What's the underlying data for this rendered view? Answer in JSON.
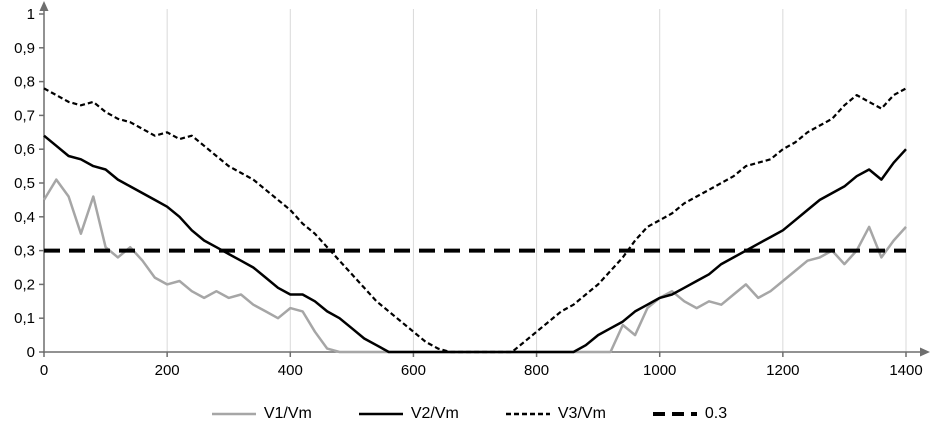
{
  "chart_data": {
    "type": "line",
    "title": "",
    "xlabel": "",
    "ylabel": "",
    "xlim": [
      0,
      1400
    ],
    "ylim": [
      0,
      1
    ],
    "grid": "vertical",
    "legend_position": "bottom",
    "colors": {
      "grid": "#d9d9d9",
      "axis": "#6e6e6e",
      "text": "#000000",
      "gray_series": "#a6a6a6",
      "black_series": "#000000"
    },
    "x_ticks": [
      0,
      200,
      400,
      600,
      800,
      1000,
      1200,
      1400
    ],
    "x_tick_labels": [
      "0",
      "200",
      "400",
      "600",
      "800",
      "1000",
      "1200",
      "1400"
    ],
    "y_ticks": [
      0,
      0.1,
      0.2,
      0.3,
      0.4,
      0.5,
      0.6,
      0.7,
      0.8,
      0.9,
      1
    ],
    "y_tick_labels": [
      "0",
      "0,1",
      "0,2",
      "0,3",
      "0,4",
      "0,5",
      "0,6",
      "0,7",
      "0,8",
      "0,9",
      "1"
    ],
    "x": [
      0,
      20,
      40,
      60,
      80,
      100,
      120,
      140,
      160,
      180,
      200,
      220,
      240,
      260,
      280,
      300,
      320,
      340,
      360,
      380,
      400,
      420,
      440,
      460,
      480,
      500,
      520,
      540,
      560,
      580,
      600,
      620,
      640,
      660,
      680,
      700,
      720,
      740,
      760,
      780,
      800,
      820,
      840,
      860,
      880,
      900,
      920,
      940,
      960,
      980,
      1000,
      1020,
      1040,
      1060,
      1080,
      1100,
      1120,
      1140,
      1160,
      1180,
      1200,
      1220,
      1240,
      1260,
      1280,
      1300,
      1320,
      1340,
      1360,
      1380,
      1400
    ],
    "series": [
      {
        "name": "V1/Vm",
        "color": "#a6a6a6",
        "dash": "",
        "width": 2.5,
        "y": [
          0.45,
          0.51,
          0.46,
          0.35,
          0.46,
          0.31,
          0.28,
          0.31,
          0.27,
          0.22,
          0.2,
          0.21,
          0.18,
          0.16,
          0.18,
          0.16,
          0.17,
          0.14,
          0.12,
          0.1,
          0.13,
          0.12,
          0.06,
          0.01,
          0,
          0,
          0,
          0,
          0,
          0,
          0,
          0,
          0,
          0,
          0,
          0,
          0,
          0,
          0,
          0,
          0,
          0,
          0,
          0,
          0,
          0,
          0,
          0.08,
          0.05,
          0.13,
          0.16,
          0.18,
          0.15,
          0.13,
          0.15,
          0.14,
          0.17,
          0.2,
          0.16,
          0.18,
          0.21,
          0.24,
          0.27,
          0.28,
          0.3,
          0.26,
          0.3,
          0.37,
          0.28,
          0.33,
          0.37
        ]
      },
      {
        "name": "V2/Vm",
        "color": "#000000",
        "dash": "",
        "width": 2.5,
        "y": [
          0.64,
          0.61,
          0.58,
          0.57,
          0.55,
          0.54,
          0.51,
          0.49,
          0.47,
          0.45,
          0.43,
          0.4,
          0.36,
          0.33,
          0.31,
          0.29,
          0.27,
          0.25,
          0.22,
          0.19,
          0.17,
          0.17,
          0.15,
          0.12,
          0.1,
          0.07,
          0.04,
          0.02,
          0,
          0,
          0,
          0,
          0,
          0,
          0,
          0,
          0,
          0,
          0,
          0,
          0,
          0,
          0,
          0,
          0.02,
          0.05,
          0.07,
          0.09,
          0.12,
          0.14,
          0.16,
          0.17,
          0.19,
          0.21,
          0.23,
          0.26,
          0.28,
          0.3,
          0.32,
          0.34,
          0.36,
          0.39,
          0.42,
          0.45,
          0.47,
          0.49,
          0.52,
          0.54,
          0.51,
          0.56,
          0.6
        ]
      },
      {
        "name": "V3/Vm",
        "color": "#000000",
        "dash": "5 3",
        "width": 2.2,
        "y": [
          0.78,
          0.76,
          0.74,
          0.73,
          0.74,
          0.71,
          0.69,
          0.68,
          0.66,
          0.64,
          0.65,
          0.63,
          0.64,
          0.61,
          0.58,
          0.55,
          0.53,
          0.51,
          0.48,
          0.45,
          0.42,
          0.38,
          0.35,
          0.31,
          0.27,
          0.23,
          0.19,
          0.15,
          0.12,
          0.09,
          0.06,
          0.03,
          0.01,
          0,
          0,
          0,
          0,
          0,
          0,
          0.03,
          0.06,
          0.09,
          0.12,
          0.14,
          0.17,
          0.2,
          0.24,
          0.28,
          0.33,
          0.37,
          0.39,
          0.41,
          0.44,
          0.46,
          0.48,
          0.5,
          0.52,
          0.55,
          0.56,
          0.57,
          0.6,
          0.62,
          0.65,
          0.67,
          0.69,
          0.73,
          0.76,
          0.74,
          0.72,
          0.76,
          0.78
        ]
      },
      {
        "name": "0.3",
        "color": "#000000",
        "dash": "16 9",
        "width": 4,
        "x_override": [
          0,
          1400
        ],
        "y": [
          0.3,
          0.3
        ]
      }
    ],
    "legend_labels": [
      "V1/Vm",
      "V2/Vm",
      "V3/Vm",
      "0.3"
    ]
  }
}
